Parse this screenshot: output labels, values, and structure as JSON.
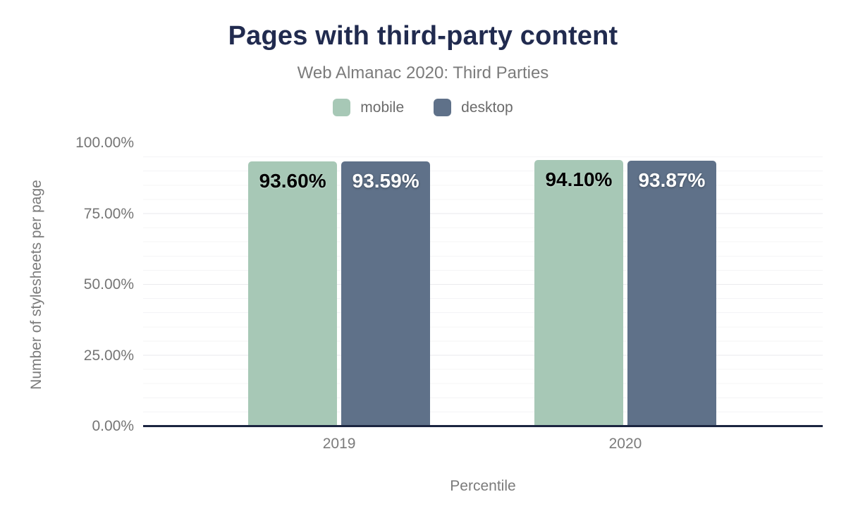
{
  "chart_data": {
    "type": "bar",
    "title": "Pages with third-party content",
    "subtitle": "Web Almanac 2020: Third Parties",
    "xlabel": "Percentile",
    "ylabel": "Number of stylesheets per page",
    "categories": [
      "2019",
      "2020"
    ],
    "series": [
      {
        "name": "mobile",
        "color": "#a7c8b6",
        "label_color": "#000000",
        "values": [
          93.6,
          94.1
        ],
        "labels": [
          "93.60%",
          "94.10%"
        ]
      },
      {
        "name": "desktop",
        "color": "#5f7189",
        "label_color": "#ffffff",
        "values": [
          93.59,
          93.87
        ],
        "labels": [
          "93.59%",
          "93.87%"
        ]
      }
    ],
    "ylim": [
      0,
      100
    ],
    "y_ticks": [
      {
        "label": "0.00%",
        "value": 0
      },
      {
        "label": "25.00%",
        "value": 25
      },
      {
        "label": "50.00%",
        "value": 50
      },
      {
        "label": "75.00%",
        "value": 75
      },
      {
        "label": "100.00%",
        "value": 100
      }
    ],
    "grid": {
      "horizontal": true,
      "minor_step_pct": 5,
      "major_step_pct": 25
    },
    "legend_position": "top"
  },
  "colors": {
    "title": "#212b4f",
    "axis_line": "#1b2540",
    "tick_text": "#757575",
    "mobile": "#a7c8b6",
    "desktop": "#5f7189"
  }
}
